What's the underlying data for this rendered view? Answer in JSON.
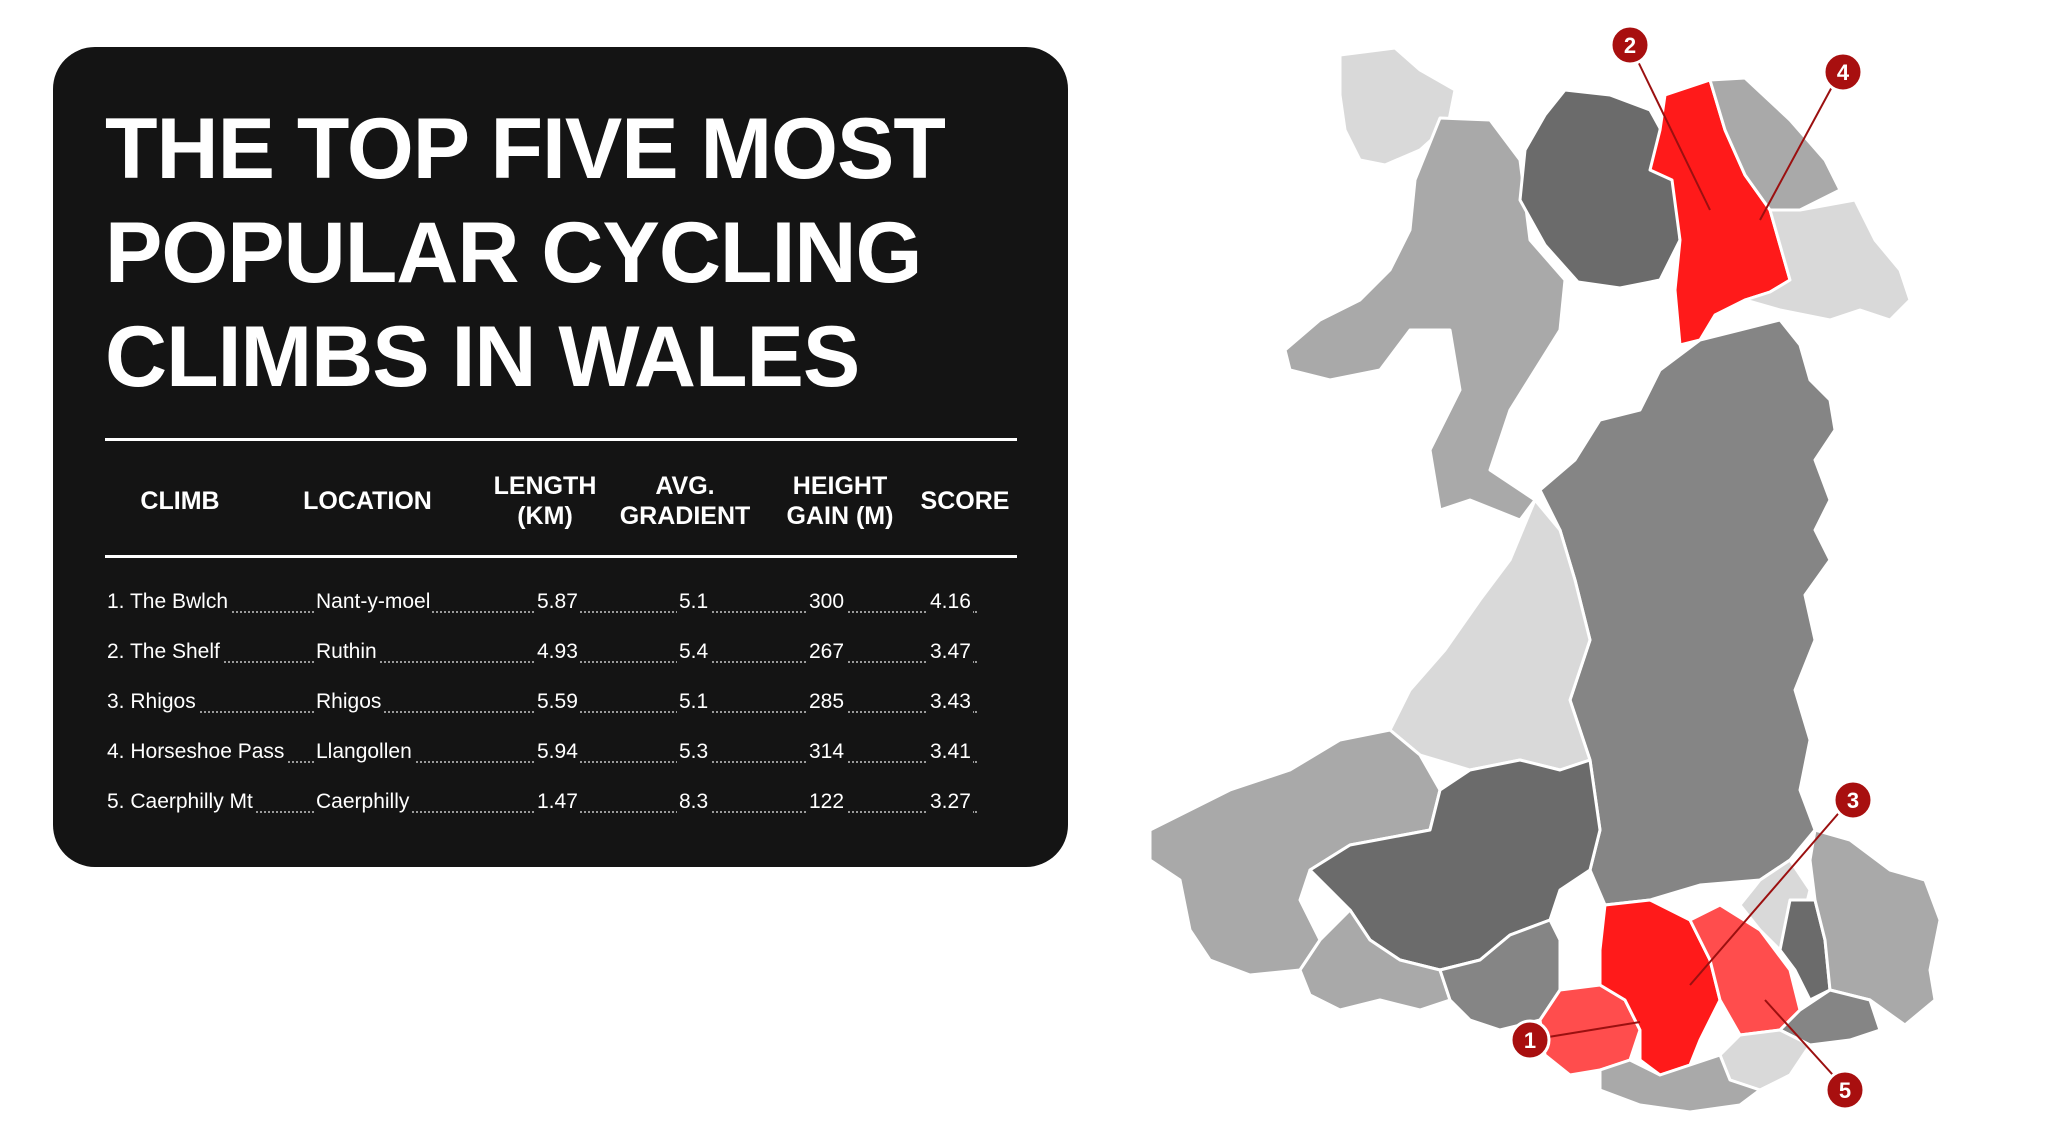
{
  "title_lines": [
    "THE TOP FIVE MOST",
    "POPULAR CYCLING",
    "CLIMBS IN WALES"
  ],
  "table": {
    "headers": [
      "CLIMB",
      "LOCATION",
      "LENGTH\n(KM)",
      "AVG.\nGRADIENT",
      "HEIGHT\nGAIN (M)",
      "SCORE"
    ],
    "rows": [
      {
        "climb": "1. The Bwlch",
        "location": "Nant-y-moel",
        "length": "5.87",
        "gradient": "5.1",
        "height": "300",
        "score": "4.16"
      },
      {
        "climb": "2. The Shelf",
        "location": "Ruthin",
        "length": "4.93",
        "gradient": "5.4",
        "height": "267",
        "score": "3.47"
      },
      {
        "climb": "3. Rhigos",
        "location": "Rhigos",
        "length": "5.59",
        "gradient": "5.1",
        "height": "285",
        "score": "3.43"
      },
      {
        "climb": "4. Horseshoe Pass",
        "location": "Llangollen",
        "length": "5.94",
        "gradient": "5.3",
        "height": "314",
        "score": "3.41"
      },
      {
        "climb": "5. Caerphilly Mt",
        "location": "Caerphilly",
        "length": "1.47",
        "gradient": "8.3",
        "height": "122",
        "score": "3.27"
      }
    ]
  },
  "map": {
    "markers": [
      "1",
      "2",
      "3",
      "4",
      "5"
    ],
    "colors": {
      "highlight": "#ff1a1a",
      "highlight_light": "#ff4d4d",
      "marker": "#a80f0f",
      "dark": "#6b6b6b",
      "mid_dark": "#858585",
      "mid": "#a9a9a9",
      "light": "#d9d9d9"
    }
  }
}
